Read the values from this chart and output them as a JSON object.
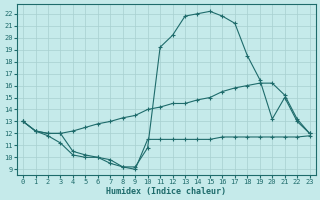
{
  "xlabel": "Humidex (Indice chaleur)",
  "bg_color": "#c5eaea",
  "grid_color": "#a8d0d0",
  "line_color": "#1e6b6b",
  "xlim": [
    -0.5,
    23.5
  ],
  "ylim": [
    8.5,
    22.8
  ],
  "yticks": [
    9,
    10,
    11,
    12,
    13,
    14,
    15,
    16,
    17,
    18,
    19,
    20,
    21,
    22
  ],
  "xticks": [
    0,
    1,
    2,
    3,
    4,
    5,
    6,
    7,
    8,
    9,
    10,
    11,
    12,
    13,
    14,
    15,
    16,
    17,
    18,
    19,
    20,
    21,
    22,
    23
  ],
  "line1_x": [
    0,
    1,
    2,
    3,
    4,
    5,
    6,
    7,
    8,
    9,
    10,
    11,
    12,
    13,
    14,
    15,
    16,
    17,
    18,
    19,
    20,
    21,
    22,
    23
  ],
  "line1_y": [
    13.0,
    12.2,
    11.8,
    11.2,
    10.2,
    10.0,
    10.0,
    9.8,
    9.2,
    9.0,
    11.5,
    11.5,
    11.5,
    11.5,
    11.5,
    11.5,
    11.7,
    11.7,
    11.7,
    11.7,
    11.7,
    11.7,
    11.7,
    11.8
  ],
  "line2_x": [
    0,
    1,
    2,
    3,
    4,
    5,
    6,
    7,
    8,
    9,
    10,
    11,
    12,
    13,
    14,
    15,
    16,
    17,
    18,
    19,
    20,
    21,
    22,
    23
  ],
  "line2_y": [
    13.0,
    12.2,
    12.0,
    12.0,
    12.2,
    12.5,
    12.8,
    13.0,
    13.3,
    13.5,
    14.0,
    14.2,
    14.5,
    14.5,
    14.8,
    15.0,
    15.5,
    15.8,
    16.0,
    16.2,
    16.2,
    15.2,
    13.2,
    12.0
  ],
  "line3_x": [
    0,
    1,
    2,
    3,
    4,
    5,
    6,
    7,
    8,
    9,
    10,
    11,
    12,
    13,
    14,
    15,
    16,
    17,
    18,
    19,
    20,
    21,
    22,
    23
  ],
  "line3_y": [
    13.0,
    12.2,
    12.0,
    12.0,
    10.5,
    10.2,
    10.0,
    9.5,
    9.2,
    9.2,
    10.8,
    19.2,
    20.2,
    21.8,
    22.0,
    22.2,
    21.8,
    21.2,
    18.5,
    16.5,
    13.2,
    15.0,
    13.0,
    12.0
  ]
}
